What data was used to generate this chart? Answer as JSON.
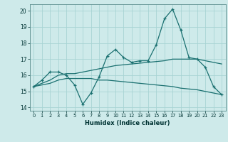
{
  "xlabel": "Humidex (Indice chaleur)",
  "ylabel": "",
  "background_color": "#ceeaea",
  "grid_color": "#a8d4d4",
  "line_color": "#1a7070",
  "xlim": [
    -0.5,
    23.5
  ],
  "ylim": [
    13.8,
    20.4
  ],
  "yticks": [
    14,
    15,
    16,
    17,
    18,
    19,
    20
  ],
  "xticks": [
    0,
    1,
    2,
    3,
    4,
    5,
    6,
    7,
    8,
    9,
    10,
    11,
    12,
    13,
    14,
    15,
    16,
    17,
    18,
    19,
    20,
    21,
    22,
    23
  ],
  "series1": [
    15.3,
    15.7,
    16.2,
    16.2,
    16.0,
    15.4,
    14.2,
    14.9,
    15.9,
    17.2,
    17.6,
    17.1,
    16.8,
    16.9,
    16.9,
    17.9,
    19.5,
    20.1,
    18.8,
    17.1,
    17.0,
    16.5,
    15.3,
    14.8
  ],
  "series2": [
    15.3,
    15.5,
    15.7,
    16.0,
    16.1,
    16.1,
    16.2,
    16.3,
    16.4,
    16.5,
    16.6,
    16.65,
    16.7,
    16.75,
    16.8,
    16.85,
    16.9,
    17.0,
    17.0,
    17.0,
    17.0,
    16.9,
    16.8,
    16.7
  ],
  "series3": [
    15.3,
    15.4,
    15.5,
    15.7,
    15.8,
    15.8,
    15.8,
    15.8,
    15.7,
    15.7,
    15.65,
    15.6,
    15.55,
    15.5,
    15.45,
    15.4,
    15.35,
    15.3,
    15.2,
    15.15,
    15.1,
    15.0,
    14.9,
    14.8
  ]
}
